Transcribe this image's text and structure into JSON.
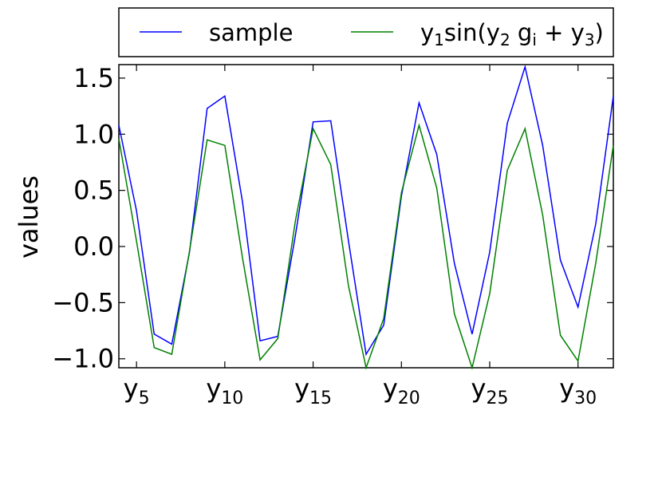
{
  "chart_data": {
    "type": "line",
    "ylabel": "values",
    "xlim": [
      4,
      32
    ],
    "ylim": [
      -1.08,
      1.62
    ],
    "x": [
      4,
      5,
      6,
      7,
      8,
      9,
      10,
      11,
      12,
      13,
      14,
      15,
      16,
      17,
      18,
      19,
      20,
      21,
      22,
      23,
      24,
      25,
      26,
      27,
      28,
      29,
      30,
      31,
      32
    ],
    "xticks": [
      {
        "value": 5,
        "base": "y",
        "sub": "5"
      },
      {
        "value": 10,
        "base": "y",
        "sub": "10"
      },
      {
        "value": 15,
        "base": "y",
        "sub": "15"
      },
      {
        "value": 20,
        "base": "y",
        "sub": "20"
      },
      {
        "value": 25,
        "base": "y",
        "sub": "25"
      },
      {
        "value": 30,
        "base": "y",
        "sub": "30"
      }
    ],
    "yticks": [
      {
        "value": -1.0,
        "label": "−1.0"
      },
      {
        "value": -0.5,
        "label": "−0.5"
      },
      {
        "value": 0.0,
        "label": "0.0"
      },
      {
        "value": 0.5,
        "label": "0.5"
      },
      {
        "value": 1.0,
        "label": "1.0"
      },
      {
        "value": 1.5,
        "label": "1.5"
      }
    ],
    "grid": false,
    "legend_placement": "top, above plot",
    "series": [
      {
        "name": "sample",
        "color": "#0000ff",
        "values": [
          1.08,
          0.32,
          -0.78,
          -0.87,
          -0.05,
          1.23,
          1.34,
          0.4,
          -0.84,
          -0.8,
          0.1,
          1.11,
          1.12,
          0.05,
          -0.96,
          -0.7,
          0.45,
          1.28,
          0.82,
          -0.15,
          -0.78,
          -0.05,
          1.1,
          1.6,
          0.9,
          -0.12,
          -0.54,
          0.2,
          1.34
        ]
      },
      {
        "name": "y1sin(y2gi+y3)",
        "color": "#008000",
        "values": [
          0.96,
          0.05,
          -0.9,
          -0.96,
          -0.04,
          0.95,
          0.9,
          -0.1,
          -1.01,
          -0.82,
          0.23,
          1.05,
          0.73,
          -0.35,
          -1.08,
          -0.64,
          0.48,
          1.08,
          0.52,
          -0.6,
          -1.08,
          -0.42,
          0.68,
          1.05,
          0.28,
          -0.79,
          -1.02,
          -0.15,
          0.9
        ]
      }
    ]
  },
  "legend": {
    "items": [
      {
        "type": "plain",
        "text": "sample",
        "color": "#0000ff"
      },
      {
        "type": "formula",
        "color": "#008000",
        "parts": [
          {
            "t": "y",
            "s": false
          },
          {
            "t": "1",
            "s": true
          },
          {
            "t": "sin(",
            "s": false
          },
          {
            "t": "y",
            "s": false
          },
          {
            "t": "2",
            "s": true
          },
          {
            "t": " g",
            "s": false
          },
          {
            "t": "i",
            "s": true
          },
          {
            "t": " + ",
            "s": false
          },
          {
            "t": "y",
            "s": false
          },
          {
            "t": "3",
            "s": true
          },
          {
            "t": ")",
            "s": false
          }
        ]
      }
    ]
  }
}
